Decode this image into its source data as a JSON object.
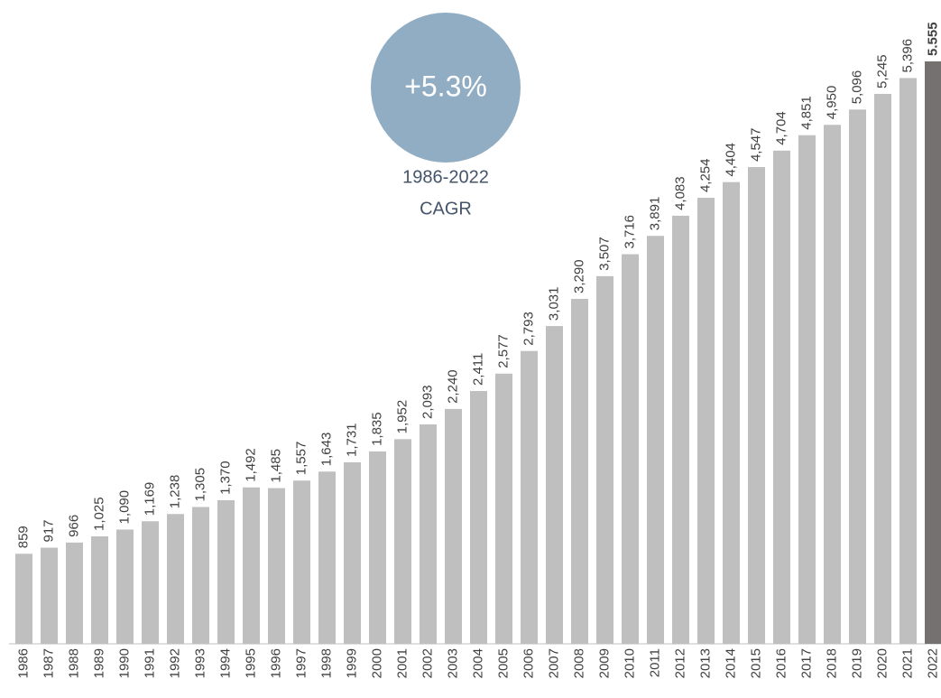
{
  "chart_data": {
    "type": "bar",
    "categories": [
      "1986",
      "1987",
      "1988",
      "1989",
      "1990",
      "1991",
      "1992",
      "1993",
      "1994",
      "1995",
      "1996",
      "1997",
      "1998",
      "1999",
      "2000",
      "2001",
      "2002",
      "2003",
      "2004",
      "2005",
      "2006",
      "2007",
      "2008",
      "2009",
      "2010",
      "2011",
      "2012",
      "2013",
      "2014",
      "2015",
      "2016",
      "2017",
      "2018",
      "2019",
      "2020",
      "2021",
      "2022"
    ],
    "values": [
      859,
      917,
      966,
      1025,
      1090,
      1169,
      1238,
      1305,
      1370,
      1492,
      1485,
      1557,
      1643,
      1731,
      1835,
      1952,
      2093,
      2240,
      2411,
      2577,
      2793,
      3031,
      3290,
      3507,
      3716,
      3891,
      4083,
      4254,
      4404,
      4547,
      4704,
      4851,
      4950,
      5096,
      5245,
      5396,
      5555
    ],
    "value_labels": [
      "859",
      "917",
      "966",
      "1,025",
      "1,090",
      "1,169",
      "1,238",
      "1,305",
      "1,370",
      "1,492",
      "1,485",
      "1,557",
      "1,643",
      "1,731",
      "1,835",
      "1,952",
      "2,093",
      "2,240",
      "2,411",
      "2,577",
      "2,793",
      "3,031",
      "3,290",
      "3,507",
      "3,716",
      "3,891",
      "4,083",
      "4,254",
      "4,404",
      "4,547",
      "4,704",
      "4,851",
      "4,950",
      "5,096",
      "5,245",
      "5,396",
      "5.555"
    ],
    "bar_colors": [
      "#bfbfbf",
      "#bfbfbf",
      "#bfbfbf",
      "#bfbfbf",
      "#bfbfbf",
      "#bfbfbf",
      "#bfbfbf",
      "#bfbfbf",
      "#bfbfbf",
      "#bfbfbf",
      "#bfbfbf",
      "#bfbfbf",
      "#bfbfbf",
      "#bfbfbf",
      "#bfbfbf",
      "#bfbfbf",
      "#bfbfbf",
      "#bfbfbf",
      "#bfbfbf",
      "#bfbfbf",
      "#bfbfbf",
      "#bfbfbf",
      "#bfbfbf",
      "#bfbfbf",
      "#bfbfbf",
      "#bfbfbf",
      "#bfbfbf",
      "#bfbfbf",
      "#bfbfbf",
      "#bfbfbf",
      "#bfbfbf",
      "#bfbfbf",
      "#bfbfbf",
      "#bfbfbf",
      "#bfbfbf",
      "#bfbfbf",
      "#767171"
    ],
    "annotations": {
      "badge": "+5.3%",
      "period": "1986-2022",
      "label": "CAGR"
    }
  }
}
